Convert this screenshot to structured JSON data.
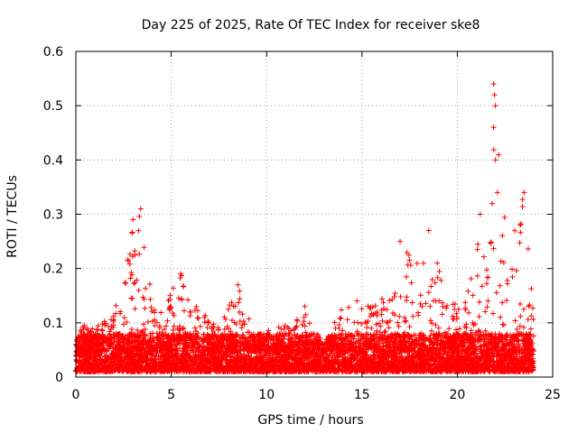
{
  "chart_data": {
    "type": "scatter",
    "title": "Day 225 of 2025, Rate Of TEC Index for receiver ske8",
    "xlabel": "GPS time / hours",
    "ylabel": "ROTI / TECUs",
    "xlim": [
      0,
      25
    ],
    "ylim": [
      0,
      0.6
    ],
    "xticks": [
      0,
      5,
      10,
      15,
      20,
      25
    ],
    "yticks": [
      0,
      0.1,
      0.2,
      0.3,
      0.4,
      0.5,
      0.6
    ],
    "grid": true,
    "marker": "+",
    "marker_color": "#ff0000",
    "series": [
      {
        "name": "ROTI",
        "x_range": [
          0,
          24
        ],
        "typical_range": [
          0.01,
          0.08
        ],
        "envelope": [
          {
            "x": 0.0,
            "y": 0.1
          },
          {
            "x": 1.0,
            "y": 0.09
          },
          {
            "x": 2.0,
            "y": 0.12
          },
          {
            "x": 2.5,
            "y": 0.18
          },
          {
            "x": 3.0,
            "y": 0.29
          },
          {
            "x": 3.4,
            "y": 0.31
          },
          {
            "x": 4.0,
            "y": 0.15
          },
          {
            "x": 4.8,
            "y": 0.16
          },
          {
            "x": 5.5,
            "y": 0.19
          },
          {
            "x": 6.5,
            "y": 0.13
          },
          {
            "x": 7.5,
            "y": 0.09
          },
          {
            "x": 8.5,
            "y": 0.17
          },
          {
            "x": 9.5,
            "y": 0.08
          },
          {
            "x": 10.5,
            "y": 0.09
          },
          {
            "x": 11.2,
            "y": 0.1
          },
          {
            "x": 12.0,
            "y": 0.13
          },
          {
            "x": 13.0,
            "y": 0.06
          },
          {
            "x": 14.0,
            "y": 0.14
          },
          {
            "x": 14.5,
            "y": 0.15
          },
          {
            "x": 15.5,
            "y": 0.13
          },
          {
            "x": 16.5,
            "y": 0.16
          },
          {
            "x": 17.0,
            "y": 0.25
          },
          {
            "x": 18.0,
            "y": 0.21
          },
          {
            "x": 18.5,
            "y": 0.27
          },
          {
            "x": 19.5,
            "y": 0.14
          },
          {
            "x": 20.5,
            "y": 0.14
          },
          {
            "x": 21.0,
            "y": 0.3
          },
          {
            "x": 21.6,
            "y": 0.25
          },
          {
            "x": 22.0,
            "y": 0.54
          },
          {
            "x": 22.3,
            "y": 0.34
          },
          {
            "x": 23.0,
            "y": 0.27
          },
          {
            "x": 23.5,
            "y": 0.34
          },
          {
            "x": 24.0,
            "y": 0.12
          }
        ],
        "notable_points": [
          {
            "x": 3.0,
            "y": 0.29
          },
          {
            "x": 3.4,
            "y": 0.31
          },
          {
            "x": 5.5,
            "y": 0.19
          },
          {
            "x": 8.5,
            "y": 0.17
          },
          {
            "x": 12.0,
            "y": 0.13
          },
          {
            "x": 17.0,
            "y": 0.25
          },
          {
            "x": 18.5,
            "y": 0.27
          },
          {
            "x": 21.2,
            "y": 0.3
          },
          {
            "x": 21.9,
            "y": 0.54
          },
          {
            "x": 21.95,
            "y": 0.52
          },
          {
            "x": 22.0,
            "y": 0.5
          },
          {
            "x": 21.9,
            "y": 0.46
          },
          {
            "x": 22.0,
            "y": 0.4
          },
          {
            "x": 22.1,
            "y": 0.34
          },
          {
            "x": 23.3,
            "y": 0.28
          },
          {
            "x": 23.5,
            "y": 0.34
          }
        ]
      }
    ]
  }
}
